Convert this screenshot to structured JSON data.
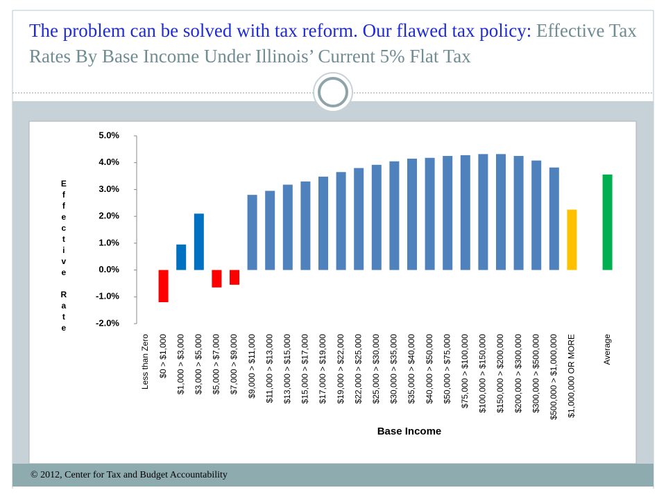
{
  "header": {
    "title_lead": "The problem can be solved with tax reform.  Our flawed tax policy:",
    "title_main": "Effective Tax Rates By Base Income Under Illinois’ Current 5% Flat Tax"
  },
  "chart_data": {
    "type": "bar",
    "x_label": "Base Income",
    "y_label": "Effective Rate",
    "categories": [
      "Less than Zero",
      "$0 > $1,000",
      "$1,000 > $3,000",
      "$3,000 > $5,000",
      "$5,000 > $7,000",
      "$7,000 > $9,000",
      "$9,000 > $11,000",
      "$11,000 > $13,000",
      "$13,000 > $15,000",
      "$15,000 > $17,000",
      "$17,000 > $19,000",
      "$19,000 > $22,000",
      "$22,000 > $25,000",
      "$25,000 > $30,000",
      "$30,000 > $35,000",
      "$35,000 > $40,000",
      "$40,000 > $50,000",
      "$50,000 > $75,000",
      "$75,000 > $100,000",
      "$100,000 > $150,000",
      "$150,000 > $200,000",
      "$200,000 > $300,000",
      "$300,000 > $500,000",
      "$500,000 > $1,000,000",
      "$1,000,000 OR MORE",
      null,
      "Average"
    ],
    "values": [
      null,
      -1.2,
      0.95,
      2.1,
      -0.65,
      -0.55,
      2.8,
      2.95,
      3.18,
      3.3,
      3.48,
      3.65,
      3.8,
      3.92,
      4.05,
      4.15,
      4.18,
      4.25,
      4.28,
      4.32,
      4.32,
      4.25,
      4.08,
      3.82,
      2.25,
      null,
      3.56
    ],
    "colors": [
      null,
      "#ff0000",
      "#0070c0",
      "#0070c0",
      "#ff0000",
      "#ff0000",
      "#4f81bd",
      "#4f81bd",
      "#4f81bd",
      "#4f81bd",
      "#4f81bd",
      "#4f81bd",
      "#4f81bd",
      "#4f81bd",
      "#4f81bd",
      "#4f81bd",
      "#4f81bd",
      "#4f81bd",
      "#4f81bd",
      "#4f81bd",
      "#4f81bd",
      "#4f81bd",
      "#4f81bd",
      "#4f81bd",
      "#ffc000",
      null,
      "#00b050"
    ],
    "ylim": [
      -2,
      5
    ],
    "yticks": [
      {
        "value": -2,
        "label": "-2.0%"
      },
      {
        "value": -1,
        "label": "-1.0%"
      },
      {
        "value": 0,
        "label": "0.0%"
      },
      {
        "value": 1,
        "label": "1.0%"
      },
      {
        "value": 2,
        "label": "2.0%"
      },
      {
        "value": 3,
        "label": "3.0%"
      },
      {
        "value": 4,
        "label": "4.0%"
      },
      {
        "value": 5,
        "label": "5.0%"
      }
    ],
    "grid": false
  },
  "footer": {
    "text": "© 2012, Center for Tax and Budget Accountability"
  }
}
